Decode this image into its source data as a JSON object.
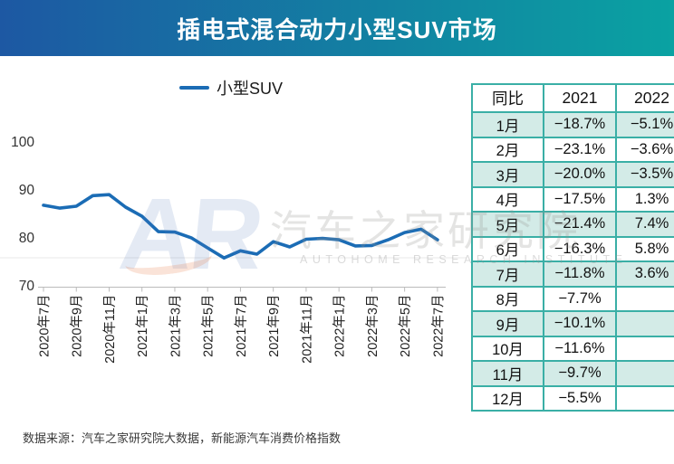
{
  "header": {
    "title": "插电式混合动力小型SUV市场"
  },
  "legend": {
    "label": "小型SUV"
  },
  "chart_data": {
    "type": "line",
    "title": "插电式混合动力小型SUV市场",
    "xlabel": "",
    "ylabel": "",
    "ylim": [
      70,
      100
    ],
    "yticks": [
      100,
      90,
      80,
      70
    ],
    "grid": false,
    "legend_position": "top",
    "x": [
      "2020年7月",
      "2020年8月",
      "2020年9月",
      "2020年10月",
      "2020年11月",
      "2020年12月",
      "2021年1月",
      "2021年2月",
      "2021年3月",
      "2021年4月",
      "2021年5月",
      "2021年6月",
      "2021年7月",
      "2021年8月",
      "2021年9月",
      "2021年10月",
      "2021年11月",
      "2021年12月",
      "2022年1月",
      "2022年2月",
      "2022年3月",
      "2022年4月",
      "2022年5月",
      "2022年6月",
      "2022年7月"
    ],
    "x_tick_labels": [
      "2020年7月",
      "2020年9月",
      "2020年11月",
      "2021年1月",
      "2021年3月",
      "2021年5月",
      "2021年7月",
      "2021年9月",
      "2021年11月",
      "2022年1月",
      "2022年3月",
      "2022年5月",
      "2022年7月"
    ],
    "series": [
      {
        "name": "小型SUV",
        "values": [
          87.0,
          86.4,
          86.8,
          89.0,
          89.2,
          86.6,
          84.7,
          81.5,
          81.4,
          80.2,
          78.1,
          76.0,
          77.5,
          76.8,
          79.4,
          78.3,
          79.9,
          80.1,
          79.8,
          78.5,
          78.6,
          79.8,
          81.3,
          82.0,
          79.8
        ]
      }
    ]
  },
  "table": {
    "headers": [
      "同比",
      "2021",
      "2022"
    ],
    "rows": [
      {
        "month": "1月",
        "y2021": "−18.7%",
        "y2022": "−5.1%"
      },
      {
        "month": "2月",
        "y2021": "−23.1%",
        "y2022": "−3.6%"
      },
      {
        "month": "3月",
        "y2021": "−20.0%",
        "y2022": "−3.5%"
      },
      {
        "month": "4月",
        "y2021": "−17.5%",
        "y2022": "1.3%"
      },
      {
        "month": "5月",
        "y2021": "−21.4%",
        "y2022": "7.4%"
      },
      {
        "month": "6月",
        "y2021": "−16.3%",
        "y2022": "5.8%"
      },
      {
        "month": "7月",
        "y2021": "−11.8%",
        "y2022": "3.6%"
      },
      {
        "month": "8月",
        "y2021": "−7.7%",
        "y2022": ""
      },
      {
        "month": "9月",
        "y2021": "−10.1%",
        "y2022": ""
      },
      {
        "month": "10月",
        "y2021": "−11.6%",
        "y2022": ""
      },
      {
        "month": "11月",
        "y2021": "−9.7%",
        "y2022": ""
      },
      {
        "month": "12月",
        "y2021": "−5.5%",
        "y2022": ""
      }
    ]
  },
  "watermark": {
    "logo": "AR",
    "cn": "汽车之家研究院",
    "en": "AUTOHOME RESEARCH INSTITUTE"
  },
  "footer": {
    "source": "数据来源：汽车之家研究院大数据，新能源汽车消费价格指数"
  },
  "colors": {
    "line": "#1B6CB5",
    "header_gradient_left": "#1D58A3",
    "header_gradient_right": "#0AA2A2",
    "table_border": "#3AAFA6",
    "table_alt_row": "#D3EBE7",
    "axis": "#BBBBBB",
    "axis_text": "#333333"
  }
}
